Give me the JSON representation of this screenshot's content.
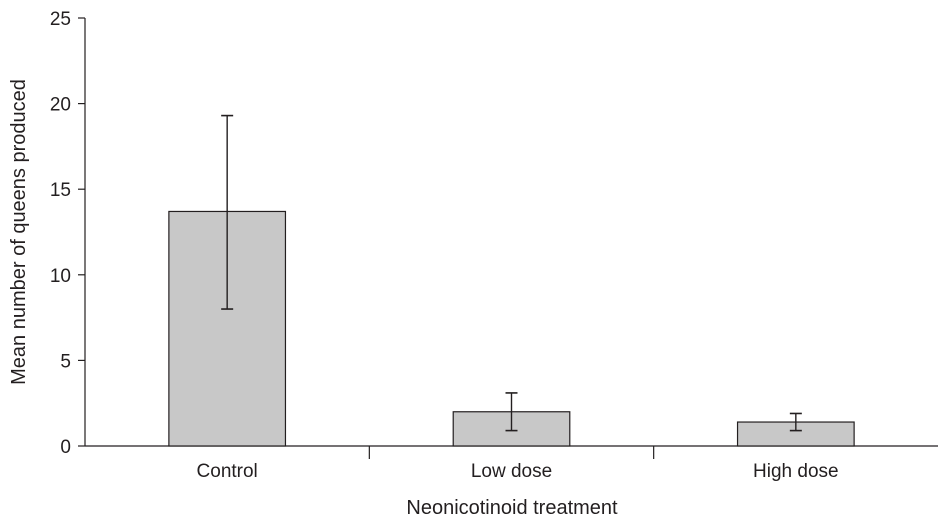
{
  "chart_data": {
    "type": "bar",
    "categories": [
      "Control",
      "Low dose",
      "High dose"
    ],
    "values": [
      13.7,
      2.0,
      1.4
    ],
    "error_low": [
      8.0,
      0.9,
      0.9
    ],
    "error_high": [
      19.3,
      3.1,
      1.9
    ],
    "title": "",
    "xlabel": "Neonicotinoid treatment",
    "ylabel": "Mean number of queens produced",
    "ylim": [
      0,
      25
    ],
    "yticks": [
      "0",
      "5",
      "10",
      "15",
      "20",
      "25"
    ],
    "grid": false,
    "colors": {
      "bar": "#c8c8c8",
      "stroke": "#231f20"
    }
  }
}
